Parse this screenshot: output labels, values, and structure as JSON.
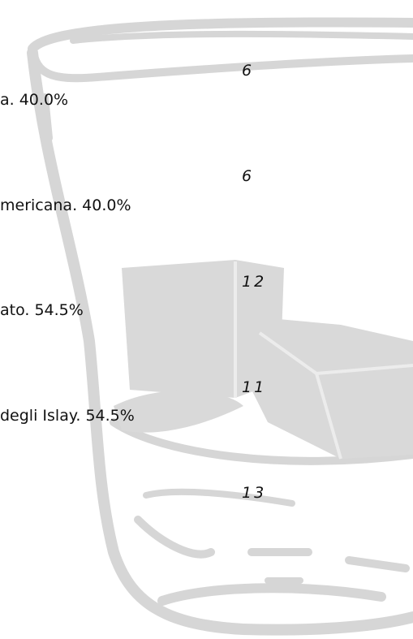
{
  "labels": [
    "a. 40.0%",
    "mericana. 40.0%",
    "ato. 54.5%",
    "degli Islay. 54.5%"
  ],
  "numbers": [
    "6",
    "6",
    "12",
    "11",
    "13"
  ]
}
